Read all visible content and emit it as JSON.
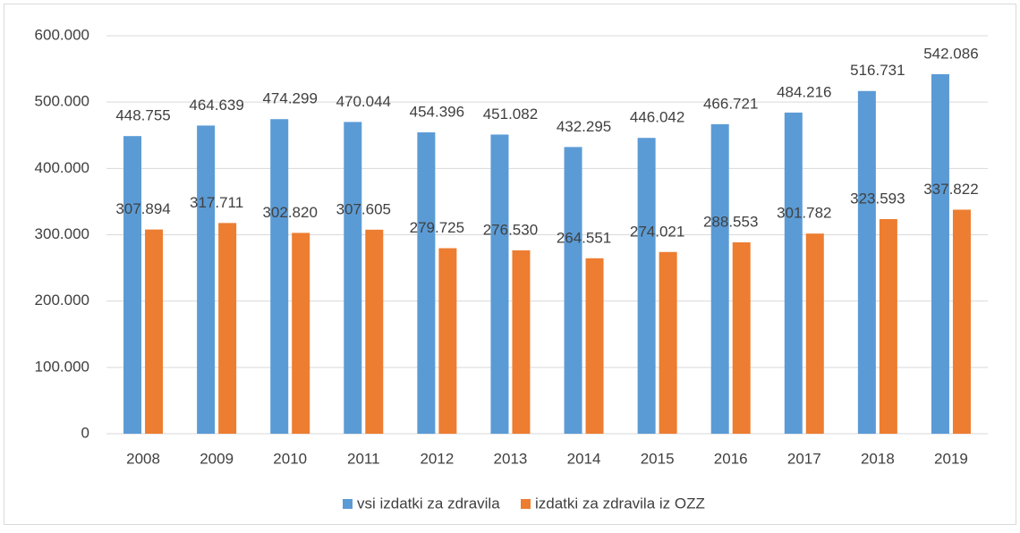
{
  "chart_data": {
    "type": "bar",
    "categories": [
      "2008",
      "2009",
      "2010",
      "2011",
      "2012",
      "2013",
      "2014",
      "2015",
      "2016",
      "2017",
      "2018",
      "2019"
    ],
    "series": [
      {
        "name": "vsi izdatki za zdravila",
        "color": "#5b9bd5",
        "values": [
          448755,
          464639,
          474299,
          470044,
          454396,
          451082,
          432295,
          446042,
          466721,
          484216,
          516731,
          542086
        ],
        "value_labels": [
          "448.755",
          "464.639",
          "474.299",
          "470.044",
          "454.396",
          "451.082",
          "432.295",
          "446.042",
          "466.721",
          "484.216",
          "516.731",
          "542.086"
        ]
      },
      {
        "name": "izdatki za zdravila iz OZZ",
        "color": "#ed7d31",
        "values": [
          307894,
          317711,
          302820,
          307605,
          279725,
          276530,
          264551,
          274021,
          288553,
          301782,
          323593,
          337822
        ],
        "value_labels": [
          "307.894",
          "317.711",
          "302.820",
          "307.605",
          "279.725",
          "276.530",
          "264.551",
          "274.021",
          "288.553",
          "301.782",
          "323.593",
          "337.822"
        ]
      }
    ],
    "ylim": [
      0,
      600000
    ],
    "yticks": [
      0,
      {
        "value": 100000,
        "label": "100.000"
      },
      {
        "value": 200000,
        "label": "200.000"
      },
      {
        "value": 300000,
        "label": "300.000"
      },
      {
        "value": 400000,
        "label": "400.000"
      },
      {
        "value": 500000,
        "label": "500.000"
      },
      {
        "value": 600000,
        "label": "600.000"
      }
    ],
    "grid": true,
    "legend": "bottom"
  }
}
